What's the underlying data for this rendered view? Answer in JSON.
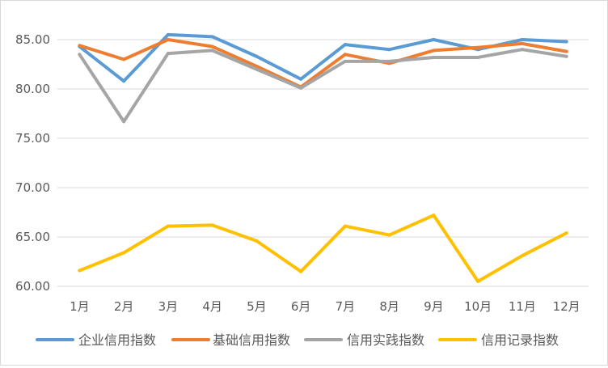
{
  "chart_data": {
    "type": "line",
    "categories": [
      "1月",
      "2月",
      "3月",
      "4月",
      "5月",
      "6月",
      "7月",
      "8月",
      "9月",
      "10月",
      "11月",
      "12月"
    ],
    "ylim": [
      60,
      85
    ],
    "yticks": [
      "60.00",
      "65.00",
      "70.00",
      "75.00",
      "80.00",
      "85.00"
    ],
    "ytick_values": [
      60,
      65,
      70,
      75,
      80,
      85
    ],
    "grid": true,
    "legend_position": "bottom",
    "series": [
      {
        "name": "企业信用指数",
        "color": "#5b9bd5",
        "values": [
          84.3,
          80.8,
          85.5,
          85.3,
          83.3,
          81.0,
          84.5,
          84.0,
          85.0,
          84.0,
          85.0,
          84.8
        ]
      },
      {
        "name": "基础信用指数",
        "color": "#ed7d31",
        "values": [
          84.4,
          83.0,
          85.0,
          84.3,
          82.3,
          80.2,
          83.5,
          82.6,
          83.9,
          84.2,
          84.6,
          83.8
        ]
      },
      {
        "name": "信用实践指数",
        "color": "#a5a5a5",
        "values": [
          83.5,
          76.7,
          83.6,
          83.9,
          82.0,
          80.1,
          82.8,
          82.8,
          83.2,
          83.2,
          84.0,
          83.3
        ]
      },
      {
        "name": "信用记录指数",
        "color": "#ffc000",
        "values": [
          61.6,
          63.4,
          66.1,
          66.2,
          64.6,
          61.5,
          66.1,
          65.2,
          67.2,
          60.5,
          63.1,
          65.4
        ]
      }
    ]
  }
}
